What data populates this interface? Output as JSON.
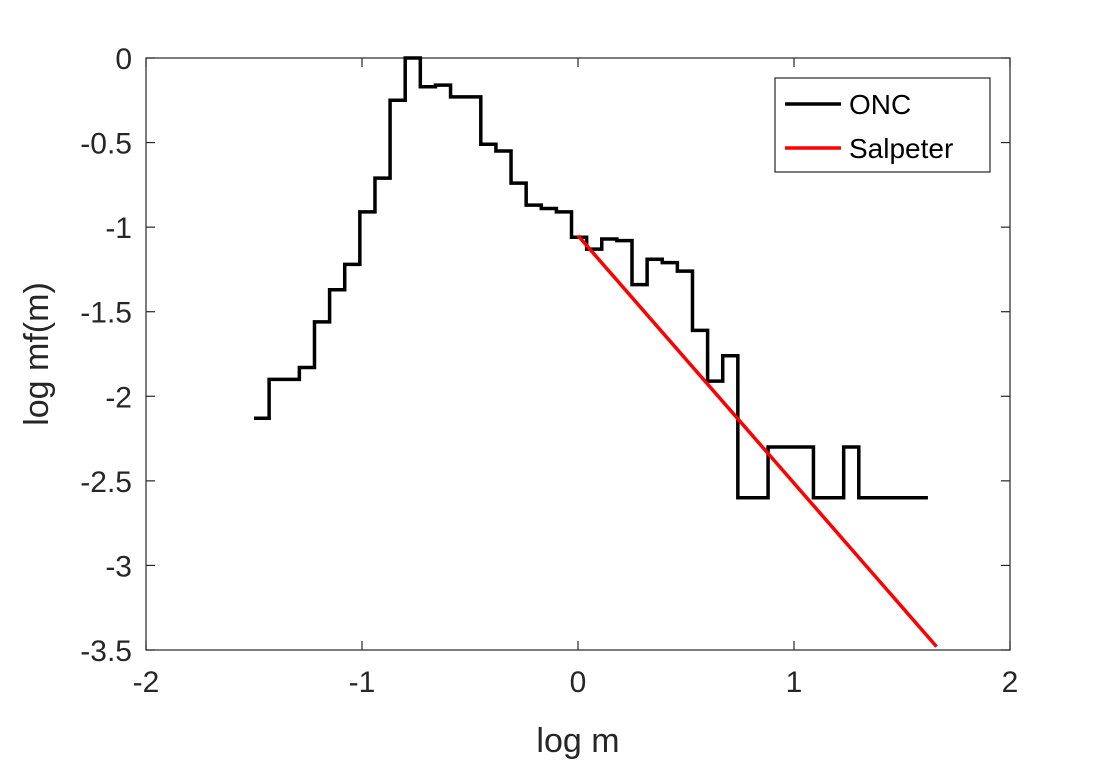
{
  "chart_data": {
    "type": "line",
    "title": "",
    "xlabel": "log m",
    "ylabel": "log mf(m)",
    "xlim": [
      -2,
      2
    ],
    "ylim": [
      -3.5,
      0
    ],
    "xticks": [
      -2,
      -1,
      0,
      1,
      2
    ],
    "yticks": [
      0,
      -0.5,
      -1,
      -1.5,
      -2,
      -2.5,
      -3,
      -3.5
    ],
    "xtick_labels": [
      "-2",
      "-1",
      "0",
      "1",
      "2"
    ],
    "ytick_labels": [
      "0",
      "-0.5",
      "-1",
      "-1.5",
      "-2",
      "-2.5",
      "-3",
      "-3.5"
    ],
    "grid": false,
    "legend_position": "top-right",
    "series": [
      {
        "name": "ONC",
        "color": "#000000",
        "style": "stairs",
        "x": [
          -1.5,
          -1.43,
          -1.36,
          -1.29,
          -1.22,
          -1.15,
          -1.08,
          -1.01,
          -0.94,
          -0.87,
          -0.8,
          -0.73,
          -0.66,
          -0.59,
          -0.52,
          -0.45,
          -0.38,
          -0.31,
          -0.24,
          -0.17,
          -0.1,
          -0.03,
          0.04,
          0.11,
          0.18,
          0.25,
          0.32,
          0.39,
          0.46,
          0.53,
          0.6,
          0.67,
          0.74,
          0.81,
          0.88,
          0.95,
          1.02,
          1.09,
          1.16,
          1.23,
          1.3,
          1.37,
          1.44,
          1.51,
          1.58,
          1.62
        ],
        "y": [
          -2.13,
          -1.9,
          -1.9,
          -1.83,
          -1.56,
          -1.37,
          -1.22,
          -0.91,
          -0.71,
          -0.25,
          -0.0,
          -0.17,
          -0.16,
          -0.23,
          -0.23,
          -0.51,
          -0.55,
          -0.74,
          -0.87,
          -0.89,
          -0.91,
          -1.06,
          -1.13,
          -1.07,
          -1.08,
          -1.34,
          -1.19,
          -1.21,
          -1.26,
          -1.61,
          -1.91,
          -1.76,
          -2.6,
          -2.6,
          -2.3,
          -2.3,
          -2.3,
          -2.6,
          -2.6,
          -2.3,
          -2.6,
          -2.6,
          -2.6,
          -2.6,
          -2.6,
          -2.6
        ]
      },
      {
        "name": "Salpeter",
        "color": "#ff0000",
        "style": "line",
        "x": [
          0.0,
          1.66
        ],
        "y": [
          -1.05,
          -3.48
        ]
      }
    ]
  }
}
